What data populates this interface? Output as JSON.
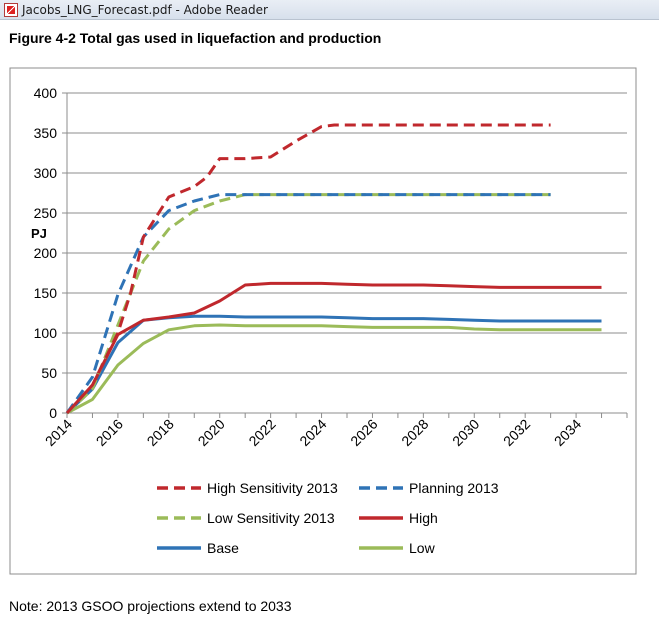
{
  "window": {
    "title": "Jacobs_LNG_Forecast.pdf - Adobe Reader",
    "icon": "pdf-icon"
  },
  "figure_title": "Figure 4-2 Total gas used in liquefaction and production",
  "note": "Note: 2013 GSOO projections extend to 2033",
  "chart_data": {
    "type": "line",
    "title": "",
    "xlabel": "",
    "ylabel": "PJ",
    "xlim": [
      2014,
      2036
    ],
    "ylim": [
      0,
      400
    ],
    "x_ticks": [
      2014,
      2016,
      2018,
      2020,
      2022,
      2024,
      2026,
      2028,
      2030,
      2032,
      2034
    ],
    "y_ticks": [
      0,
      50,
      100,
      150,
      200,
      250,
      300,
      350,
      400
    ],
    "grid": "horizontal",
    "legend_position": "bottom",
    "series": [
      {
        "name": "High Sensitivity 2013",
        "color": "#c0282d",
        "dashed": true,
        "x": [
          2014,
          2015,
          2016,
          2016.5,
          2017,
          2017.5,
          2018,
          2019,
          2019.5,
          2020,
          2021,
          2022,
          2023,
          2024,
          2024.5,
          2025,
          2026,
          2027,
          2028,
          2029,
          2030,
          2031,
          2032,
          2033
        ],
        "y": [
          0,
          35,
          100,
          150,
          220,
          245,
          270,
          283,
          295,
          318,
          318,
          320,
          340,
          358,
          360,
          360,
          360,
          360,
          360,
          360,
          360,
          360,
          360,
          360
        ]
      },
      {
        "name": "Planning 2013",
        "color": "#2f73b6",
        "dashed": true,
        "x": [
          2014,
          2015,
          2016,
          2017,
          2018,
          2019,
          2020,
          2021,
          2022,
          2023,
          2024,
          2025,
          2026,
          2027,
          2028,
          2029,
          2030,
          2031,
          2032,
          2033
        ],
        "y": [
          0,
          45,
          148,
          220,
          253,
          265,
          273,
          273,
          273,
          273,
          273,
          273,
          273,
          273,
          273,
          273,
          273,
          273,
          273,
          273
        ]
      },
      {
        "name": "Low Sensitivity 2013",
        "color": "#9bbb59",
        "dashed": true,
        "x": [
          2014,
          2015,
          2016,
          2017,
          2018,
          2019,
          2020,
          2021,
          2022,
          2023,
          2024,
          2025,
          2026,
          2027,
          2028,
          2029,
          2030,
          2031,
          2032,
          2033
        ],
        "y": [
          0,
          30,
          110,
          190,
          230,
          253,
          265,
          273,
          273,
          273,
          273,
          273,
          273,
          273,
          273,
          273,
          273,
          273,
          273,
          273
        ]
      },
      {
        "name": "High",
        "color": "#c0282d",
        "dashed": false,
        "x": [
          2014,
          2015,
          2016,
          2017,
          2018,
          2019,
          2020,
          2021,
          2022,
          2023,
          2024,
          2025,
          2026,
          2027,
          2028,
          2029,
          2030,
          2031,
          2032,
          2033,
          2034,
          2035
        ],
        "y": [
          0,
          35,
          98,
          116,
          120,
          125,
          140,
          160,
          162,
          162,
          162,
          161,
          160,
          160,
          160,
          159,
          158,
          157,
          157,
          157,
          157,
          157
        ]
      },
      {
        "name": "Base",
        "color": "#2f73b6",
        "dashed": false,
        "x": [
          2014,
          2015,
          2016,
          2017,
          2018,
          2019,
          2020,
          2021,
          2022,
          2023,
          2024,
          2025,
          2026,
          2027,
          2028,
          2029,
          2030,
          2031,
          2032,
          2033,
          2034,
          2035
        ],
        "y": [
          0,
          30,
          88,
          116,
          119,
          121,
          121,
          120,
          120,
          120,
          120,
          119,
          118,
          118,
          118,
          117,
          116,
          115,
          115,
          115,
          115,
          115
        ]
      },
      {
        "name": "Low",
        "color": "#9bbb59",
        "dashed": false,
        "x": [
          2014,
          2015,
          2016,
          2017,
          2018,
          2019,
          2020,
          2021,
          2022,
          2023,
          2024,
          2025,
          2026,
          2027,
          2028,
          2029,
          2030,
          2031,
          2032,
          2033,
          2034,
          2035
        ],
        "y": [
          0,
          17,
          60,
          87,
          104,
          109,
          110,
          109,
          109,
          109,
          109,
          108,
          107,
          107,
          107,
          107,
          105,
          104,
          104,
          104,
          104,
          104
        ]
      }
    ]
  }
}
